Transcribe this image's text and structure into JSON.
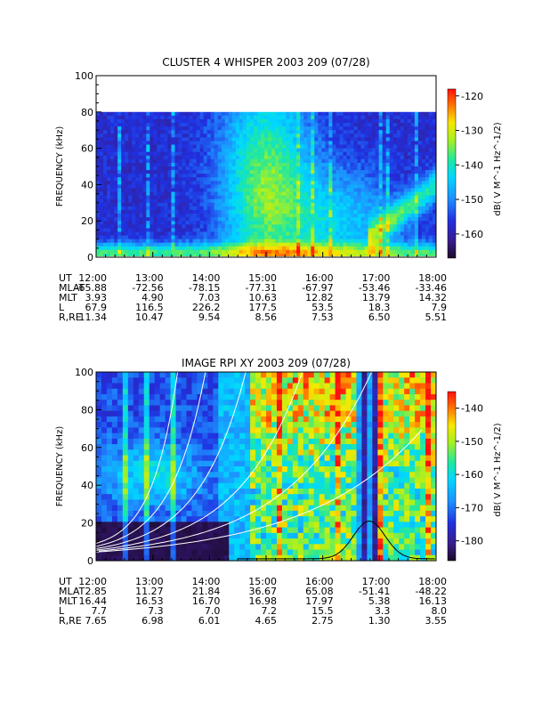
{
  "chart_data": [
    {
      "type": "heatmap",
      "title": "CLUSTER 4 WHISPER 2003 209 (07/28)",
      "ylabel": "FREQUENCY (kHz)",
      "xlim": [
        12,
        18
      ],
      "ylim": [
        0,
        100
      ],
      "data_top_khz": 80,
      "x_ticks": [
        "12:00",
        "13:00",
        "14:00",
        "15:00",
        "16:00",
        "17:00",
        "18:00"
      ],
      "y_ticks": [
        "0",
        "20",
        "40",
        "60",
        "80",
        "100"
      ],
      "colorbar": {
        "range": [
          -167,
          -118
        ],
        "ticks": [
          "-120",
          "-130",
          "-140",
          "-150",
          "-160"
        ],
        "label": "dB( V M^-1 Hz^-1/2)"
      },
      "ephemeris": [
        {
          "label": "UT",
          "values": [
            "12:00",
            "13:00",
            "14:00",
            "15:00",
            "16:00",
            "17:00",
            "18:00"
          ]
        },
        {
          "label": "MLAT",
          "values": [
            "-65.88",
            "-72.56",
            "-78.15",
            "-77.31",
            "-67.97",
            "-53.46",
            "-33.46"
          ]
        },
        {
          "label": "MLT",
          "values": [
            "3.93",
            "4.90",
            "7.03",
            "10.63",
            "12.82",
            "13.79",
            "14.32"
          ]
        },
        {
          "label": "L",
          "values": [
            "67.9",
            "116.5",
            "226.2",
            "177.5",
            "53.5",
            "18.3",
            "7.9"
          ]
        },
        {
          "label": "R,RE",
          "values": [
            "11.34",
            "10.47",
            "9.54",
            "8.56",
            "7.53",
            "6.50",
            "5.51"
          ]
        }
      ]
    },
    {
      "type": "heatmap",
      "title": "IMAGE RPI XY 2003 209 (07/28)",
      "ylabel": "FREQUENCY (kHz)",
      "xlim": [
        12,
        18
      ],
      "ylim": [
        0,
        100
      ],
      "x_ticks": [
        "12:00",
        "13:00",
        "14:00",
        "15:00",
        "16:00",
        "17:00",
        "18:00"
      ],
      "y_ticks": [
        "0",
        "20",
        "40",
        "60",
        "80",
        "100"
      ],
      "colorbar": {
        "range": [
          -186,
          -135
        ],
        "ticks": [
          "-140",
          "-150",
          "-160",
          "-170",
          "-180"
        ],
        "label": "dB( V M^-1 Hz^-1/2)"
      },
      "ephemeris": [
        {
          "label": "UT",
          "values": [
            "12:00",
            "13:00",
            "14:00",
            "15:00",
            "16:00",
            "17:00",
            "18:00"
          ]
        },
        {
          "label": "MLAT",
          "values": [
            "2.85",
            "11.27",
            "21.84",
            "36.67",
            "65.08",
            "-51.41",
            "-48.22"
          ]
        },
        {
          "label": "MLT",
          "values": [
            "16.44",
            "16.53",
            "16.70",
            "16.98",
            "17.97",
            "5.38",
            "16.13"
          ]
        },
        {
          "label": "L",
          "values": [
            "7.7",
            "7.3",
            "7.0",
            "7.2",
            "15.5",
            "3.3",
            "8.0"
          ]
        },
        {
          "label": "R,RE",
          "values": [
            "7.65",
            "6.98",
            "6.01",
            "4.65",
            "2.75",
            "1.30",
            "3.55"
          ]
        }
      ]
    }
  ]
}
